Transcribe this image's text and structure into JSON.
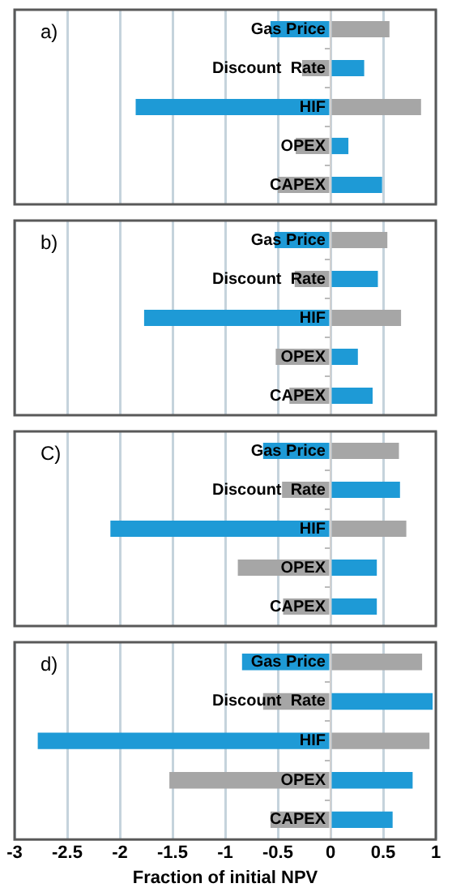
{
  "chart_data": [
    {
      "type": "bar",
      "orientation": "horizontal",
      "stacked": true,
      "categories": [
        "Gas Price",
        "Discount  Rate",
        "HIF",
        "OPEX",
        "CAPEX"
      ],
      "annotations": [
        "a)"
      ],
      "xlim": [
        -3,
        1
      ],
      "xticks": [
        -3,
        -2.5,
        -2,
        -1.5,
        -1,
        -0.5,
        0,
        0.5,
        1
      ],
      "grid": "x",
      "legend": false,
      "tick_labels": "y",
      "series": [
        {
          "color": "#1e9ad6",
          "values": [
            -0.57,
            0.32,
            -1.85,
            0.17,
            0.49
          ]
        },
        {
          "color": "#a6a6a6",
          "values": [
            0.56,
            -0.27,
            0.86,
            -0.33,
            -0.5
          ]
        }
      ]
    },
    {
      "type": "bar",
      "orientation": "horizontal",
      "stacked": true,
      "categories": [
        "Gas Price",
        "Discount  Rate",
        "HIF",
        "OPEX",
        "CAPEX"
      ],
      "annotations": [
        "b)"
      ],
      "xlim": [
        -3,
        1
      ],
      "xticks": [
        -3,
        -2.5,
        -2,
        -1.5,
        -1,
        -0.5,
        0,
        0.5,
        1
      ],
      "grid": "x",
      "legend": false,
      "tick_labels": "y",
      "series": [
        {
          "color": "#1e9ad6",
          "values": [
            -0.53,
            0.45,
            -1.77,
            0.26,
            0.4
          ]
        },
        {
          "color": "#a6a6a6",
          "values": [
            0.54,
            -0.34,
            0.67,
            -0.52,
            -0.39
          ]
        }
      ]
    },
    {
      "type": "bar",
      "orientation": "horizontal",
      "stacked": true,
      "categories": [
        "Gas Price",
        "Discount  Rate",
        "HIF",
        "OPEX",
        "CAPEX"
      ],
      "annotations": [
        "C)"
      ],
      "xlim": [
        -3,
        1
      ],
      "xticks": [
        -3,
        -2.5,
        -2,
        -1.5,
        -1,
        -0.5,
        0,
        0.5,
        1
      ],
      "grid": "x",
      "legend": false,
      "tick_labels": "y",
      "series": [
        {
          "color": "#1e9ad6",
          "values": [
            -0.64,
            0.66,
            -2.09,
            0.44,
            0.44
          ]
        },
        {
          "color": "#a6a6a6",
          "values": [
            0.65,
            -0.46,
            0.72,
            -0.88,
            -0.45
          ]
        }
      ]
    },
    {
      "type": "bar",
      "orientation": "horizontal",
      "stacked": true,
      "categories": [
        "Gas Price",
        "Discount  Rate",
        "HIF",
        "OPEX",
        "CAPEX"
      ],
      "annotations": [
        "d)"
      ],
      "xlabel": "Fraction of initial NPV",
      "xlim": [
        -3,
        1
      ],
      "xticks": [
        -3,
        -2.5,
        -2,
        -1.5,
        -1,
        -0.5,
        0,
        0.5,
        1
      ],
      "grid": "x",
      "legend": false,
      "series": [
        {
          "color": "#1e9ad6",
          "values": [
            -0.84,
            0.97,
            -2.78,
            0.78,
            0.59
          ]
        },
        {
          "color": "#a6a6a6",
          "values": [
            0.87,
            -0.64,
            0.94,
            -1.53,
            -0.57
          ]
        }
      ]
    }
  ]
}
